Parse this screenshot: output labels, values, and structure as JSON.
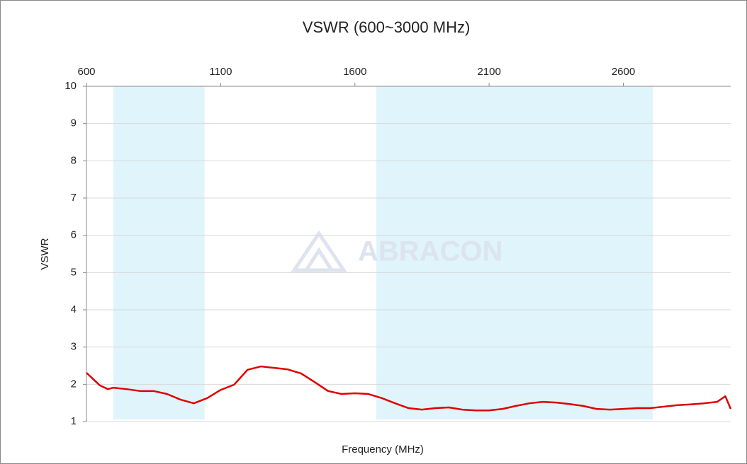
{
  "chart_data": {
    "type": "line",
    "title": "VSWR (600~3000 MHz)",
    "xlabel": "Frequency (MHz)",
    "ylabel": "VSWR",
    "watermark": "ABRACON",
    "x": [
      600,
      650,
      680,
      700,
      750,
      800,
      850,
      900,
      950,
      1000,
      1050,
      1100,
      1150,
      1200,
      1250,
      1300,
      1350,
      1400,
      1450,
      1500,
      1550,
      1600,
      1650,
      1700,
      1750,
      1800,
      1850,
      1900,
      1950,
      2000,
      2050,
      2100,
      2150,
      2200,
      2250,
      2300,
      2350,
      2400,
      2450,
      2500,
      2550,
      2600,
      2650,
      2700,
      2750,
      2800,
      2850,
      2900,
      2950,
      2980,
      3000
    ],
    "series": [
      {
        "name": "VSWR",
        "color": "#e00000",
        "values": [
          2.31,
          1.97,
          1.87,
          1.91,
          1.87,
          1.82,
          1.82,
          1.74,
          1.59,
          1.49,
          1.63,
          1.85,
          1.99,
          2.39,
          2.48,
          2.44,
          2.4,
          2.29,
          2.06,
          1.82,
          1.74,
          1.76,
          1.74,
          1.63,
          1.49,
          1.36,
          1.32,
          1.36,
          1.38,
          1.32,
          1.3,
          1.3,
          1.34,
          1.42,
          1.49,
          1.53,
          1.51,
          1.47,
          1.42,
          1.34,
          1.32,
          1.34,
          1.36,
          1.36,
          1.4,
          1.44,
          1.46,
          1.49,
          1.53,
          1.68,
          1.34
        ]
      }
    ],
    "bands": [
      [
        700,
        1040
      ],
      [
        1680,
        2710
      ]
    ],
    "band_color": "#dff4fb",
    "xlim": [
      600,
      3000
    ],
    "xticks": [
      600,
      1100,
      1600,
      2100,
      2600
    ],
    "ylim": [
      1,
      10
    ],
    "yticks": [
      1,
      2,
      3,
      4,
      5,
      6,
      7,
      8,
      9,
      10
    ],
    "grid": true
  }
}
